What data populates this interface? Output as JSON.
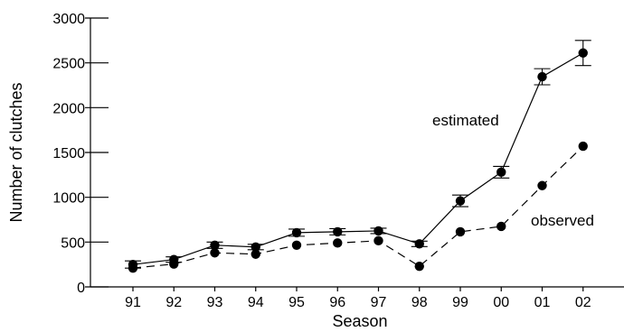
{
  "chart_data": {
    "type": "line",
    "xlabel": "Season",
    "ylabel": "Number of clutches",
    "categories": [
      "91",
      "92",
      "93",
      "94",
      "95",
      "96",
      "97",
      "98",
      "99",
      "00",
      "01",
      "02"
    ],
    "ylim": [
      0,
      3000
    ],
    "yticks": [
      "0",
      "500",
      "1000",
      "1500",
      "2000",
      "2500",
      "3000"
    ],
    "grid": false,
    "series": [
      {
        "name": "estimated",
        "style": "solid",
        "values": [
          250,
          305,
          465,
          445,
          605,
          615,
          625,
          480,
          960,
          1280,
          2345,
          2610
        ],
        "err": [
          40,
          30,
          35,
          30,
          40,
          35,
          30,
          30,
          65,
          65,
          90,
          140
        ]
      },
      {
        "name": "observed",
        "style": "dashed",
        "values": [
          210,
          255,
          380,
          365,
          465,
          490,
          515,
          230,
          615,
          675,
          1130,
          1570
        ]
      }
    ],
    "annotations": {
      "estimated": "estimated",
      "observed": "observed"
    },
    "colors": {
      "line": "#000000"
    }
  }
}
